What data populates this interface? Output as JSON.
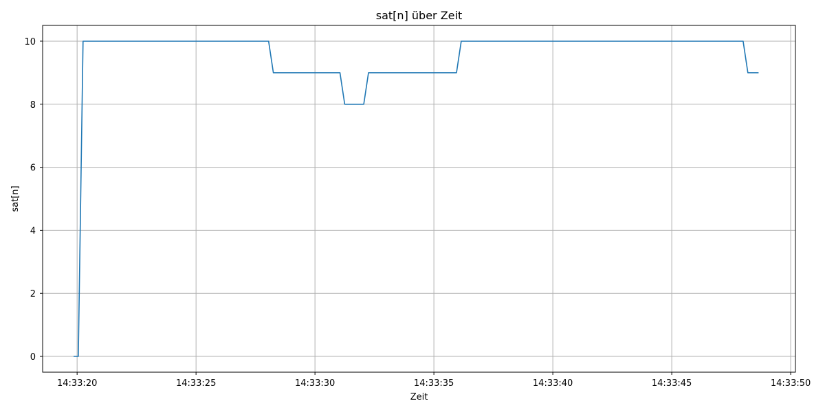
{
  "chart_data": {
    "type": "line",
    "title": "sat[n] über Zeit",
    "xlabel": "Zeit",
    "ylabel": "sat[n]",
    "x_tick_labels": [
      "14:33:20",
      "14:33:25",
      "14:33:30",
      "14:33:35",
      "14:33:40",
      "14:33:45",
      "14:33:50"
    ],
    "x_tick_values": [
      20,
      25,
      30,
      35,
      40,
      45,
      50
    ],
    "y_tick_labels": [
      "0",
      "2",
      "4",
      "6",
      "8",
      "10"
    ],
    "y_tick_values": [
      0,
      2,
      4,
      6,
      8,
      10
    ],
    "xlim": [
      18.55,
      50.2
    ],
    "ylim": [
      -0.5,
      10.5
    ],
    "grid": true,
    "series": [
      {
        "color": "#1f77b4",
        "x": [
          19.85,
          20.05,
          20.25,
          28.05,
          28.25,
          31.05,
          31.25,
          32.05,
          32.25,
          35.95,
          36.15,
          48.0,
          48.2,
          48.65
        ],
        "y": [
          0,
          0,
          10,
          10,
          9,
          9,
          8,
          8,
          9,
          9,
          10,
          10,
          9,
          9
        ]
      }
    ]
  }
}
